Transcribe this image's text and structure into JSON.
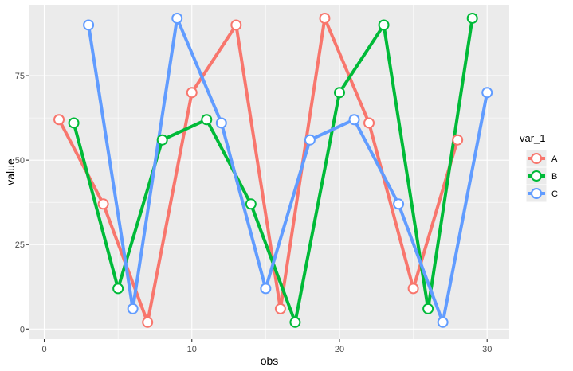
{
  "chart_data": {
    "type": "line",
    "xlabel": "obs",
    "ylabel": "value",
    "xlim": [
      -1,
      31.5
    ],
    "ylim": [
      -3,
      96
    ],
    "x_ticks": [
      0,
      10,
      20,
      30
    ],
    "y_ticks": [
      0,
      25,
      50,
      75
    ],
    "x_tick_labels": [
      "0",
      "10",
      "20",
      "30"
    ],
    "y_tick_labels": [
      "0",
      "25",
      "50",
      "75"
    ],
    "grid": true,
    "legend": {
      "title": "var_1",
      "position": "right"
    },
    "series": [
      {
        "name": "A",
        "color": "#F8766D",
        "x": [
          1,
          4,
          7,
          10,
          13,
          16,
          19,
          22,
          25,
          28
        ],
        "y": [
          62,
          37,
          2,
          70,
          90,
          6,
          92,
          61,
          12,
          56
        ]
      },
      {
        "name": "B",
        "color": "#00BA38",
        "x": [
          2,
          5,
          8,
          11,
          14,
          17,
          20,
          23,
          26,
          29
        ],
        "y": [
          61,
          12,
          56,
          62,
          37,
          2,
          70,
          90,
          6,
          92
        ]
      },
      {
        "name": "C",
        "color": "#619CFF",
        "x": [
          3,
          6,
          9,
          12,
          15,
          18,
          21,
          24,
          27,
          30
        ],
        "y": [
          90,
          6,
          92,
          61,
          12,
          56,
          62,
          37,
          2,
          70
        ]
      }
    ]
  }
}
